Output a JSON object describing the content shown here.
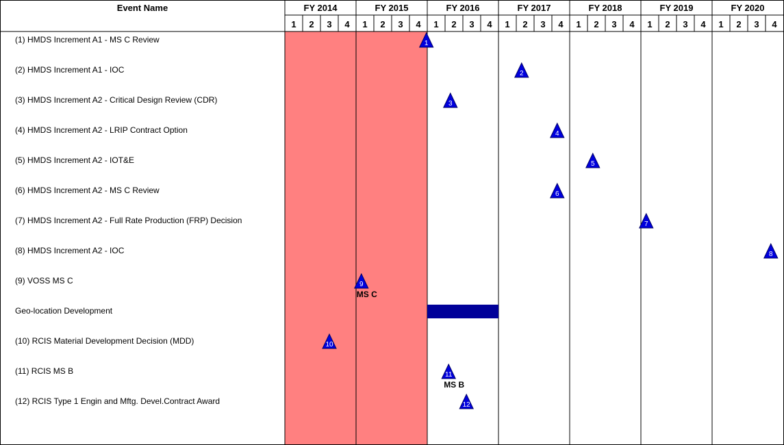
{
  "chart_data": {
    "type": "gantt",
    "header": {
      "event_column_label": "Event Name",
      "fiscal_years": [
        "FY 2014",
        "FY 2015",
        "FY 2016",
        "FY 2017",
        "FY 2018",
        "FY 2019",
        "FY 2020"
      ],
      "quarter_labels": [
        "1",
        "2",
        "3",
        "4"
      ]
    },
    "shaded_range": {
      "start_fy": 2014,
      "start_q": 1,
      "end_fy": 2015,
      "end_q": 4
    },
    "rows": [
      {
        "label": "(1) HMDS Increment A1 - MS C Review",
        "milestone": {
          "number": "1",
          "fy": 2015,
          "q": 4.95
        }
      },
      {
        "label": "(2) HMDS Increment A1 - IOC",
        "milestone": {
          "number": "2",
          "fy": 2017,
          "q": 2.3
        }
      },
      {
        "label": "(3) HMDS Increment A2 - Critical Design Review (CDR)",
        "milestone": {
          "number": "3",
          "fy": 2016,
          "q": 2.3
        }
      },
      {
        "label": "(4) HMDS Increment A2 - LRIP Contract Option",
        "milestone": {
          "number": "4",
          "fy": 2017,
          "q": 4.3
        }
      },
      {
        "label": "(5) HMDS Increment A2 - IOT&E",
        "milestone": {
          "number": "5",
          "fy": 2018,
          "q": 2.3
        }
      },
      {
        "label": "(6) HMDS Increment A2 - MS C Review",
        "milestone": {
          "number": "6",
          "fy": 2017,
          "q": 4.3
        }
      },
      {
        "label": "(7) HMDS Increment A2 - Full Rate Production (FRP) Decision",
        "milestone": {
          "number": "7",
          "fy": 2019,
          "q": 1.3
        }
      },
      {
        "label": "(8) HMDS Increment A2 - IOC",
        "milestone": {
          "number": "8",
          "fy": 2020,
          "q": 4.3
        }
      },
      {
        "label": "(9) VOSS MS C",
        "milestone": {
          "number": "9",
          "fy": 2015,
          "q": 1.3,
          "caption": "MS C"
        }
      },
      {
        "label": "Geo-location Development",
        "bar": {
          "start_fy": 2016,
          "start_q": 1,
          "end_fy": 2016,
          "end_q": 4
        }
      },
      {
        "label": "(10) RCIS Material Development Decision (MDD)",
        "milestone": {
          "number": "10",
          "fy": 2014,
          "q": 3.5
        }
      },
      {
        "label": "(11) RCIS MS B",
        "milestone": {
          "number": "11",
          "fy": 2016,
          "q": 2.2,
          "caption": "MS B"
        }
      },
      {
        "label": "(12) RCIS Type 1 Engin and Mftg. Devel.Contract Award",
        "milestone": {
          "number": "12",
          "fy": 2016,
          "q": 3.2
        }
      }
    ]
  },
  "colors": {
    "shaded": "#ff8080",
    "milestone_fill": "#0000dd",
    "milestone_stroke": "#000066",
    "bar_fill": "#000099",
    "grid": "#000000",
    "text": "#000000"
  }
}
